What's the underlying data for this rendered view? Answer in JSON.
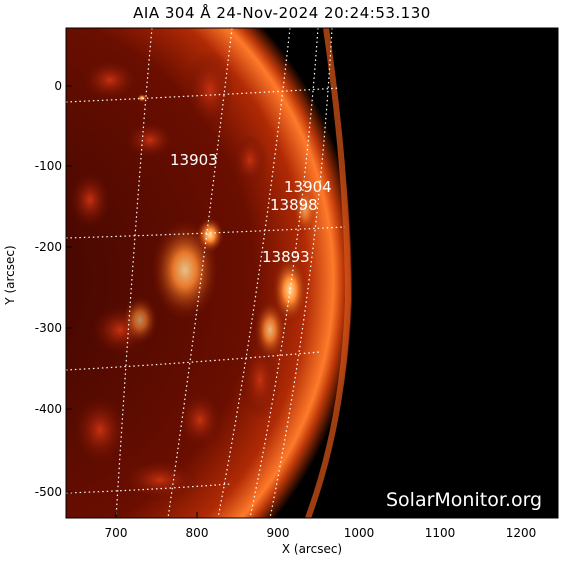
{
  "title": "AIA 304 Å 24-Nov-2024 20:24:53.130",
  "x_axis": {
    "label": "X (arcsec)",
    "ticks": [
      "700",
      "800",
      "900",
      "1000",
      "1100",
      "1200"
    ]
  },
  "y_axis": {
    "label": "Y (arcsec)",
    "ticks": [
      "0",
      "-100",
      "-200",
      "-300",
      "-400",
      "-500"
    ]
  },
  "active_regions": [
    {
      "id": "13903"
    },
    {
      "id": "13904"
    },
    {
      "id": "13898"
    },
    {
      "id": "13893"
    }
  ],
  "watermark": "SolarMonitor.org",
  "colors": {
    "background": "#000000",
    "limb_bright": "#ff8a3a",
    "chromosphere": "#7a1200",
    "grid": "#ffffff"
  }
}
